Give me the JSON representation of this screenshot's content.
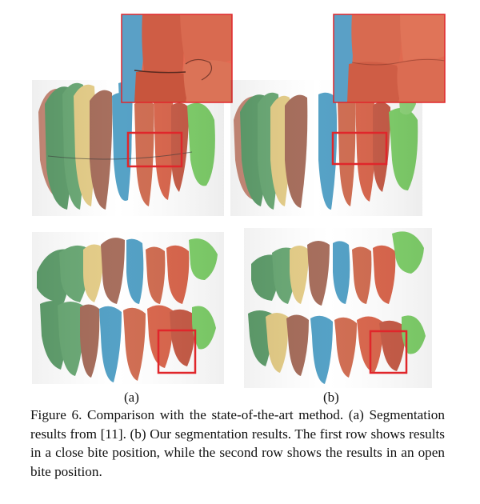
{
  "figure": {
    "panels": [
      {
        "label": "(a)"
      },
      {
        "label": "(b)"
      }
    ],
    "caption": "Figure 6. Comparison with the state-of-the-art method. (a) Segmentation results from [11]. (b) Our segmentation results. The first row shows results in a close bite position, while the second row shows the results in an open bite position.",
    "highlight_color": "#e0262b",
    "tooth_colors": {
      "green": "#5f9e6c",
      "light_green": "#7fd06a",
      "cream": "#e4cc86",
      "brown": "#a46a58",
      "blue": "#4f9ec4",
      "salmon": "#cf6a4e",
      "orange": "#d9644a"
    }
  }
}
